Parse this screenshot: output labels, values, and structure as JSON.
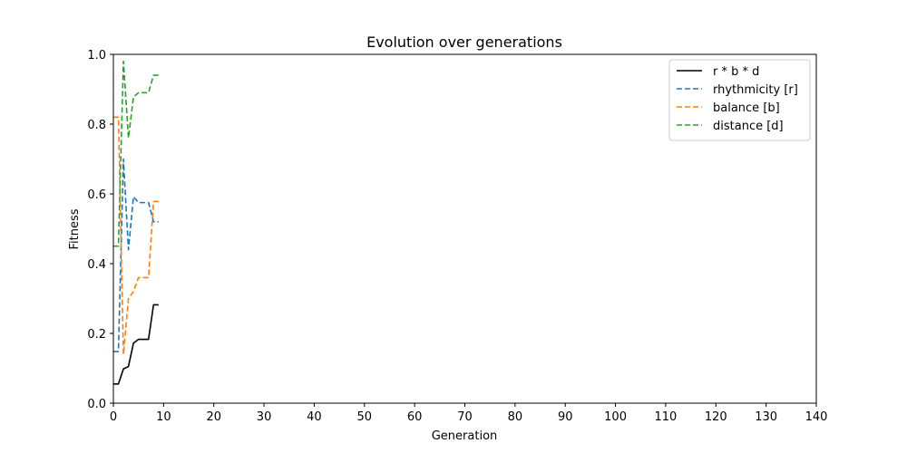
{
  "chart_data": {
    "type": "line",
    "title": "Evolution over generations",
    "xlabel": "Generation",
    "ylabel": "Fitness",
    "xlim": [
      0,
      140
    ],
    "ylim": [
      0,
      1.0
    ],
    "xticks": [
      "0",
      "10",
      "20",
      "30",
      "40",
      "50",
      "60",
      "70",
      "80",
      "90",
      "100",
      "110",
      "120",
      "130",
      "140"
    ],
    "yticks": [
      "0.0",
      "0.2",
      "0.4",
      "0.6",
      "0.8",
      "1.0"
    ],
    "grid": false,
    "legend_position": "top-right",
    "series": [
      {
        "name": "r * b * d",
        "color": "#000000",
        "dash": "solid",
        "x": [
          0,
          1,
          2,
          3,
          4,
          5,
          6,
          7,
          8,
          9
        ],
        "y": [
          0.055,
          0.055,
          0.098,
          0.105,
          0.172,
          0.183,
          0.183,
          0.183,
          0.282,
          0.282
        ]
      },
      {
        "name": "rhythmicity [r]",
        "color": "#1f77b4",
        "dash": "dashed",
        "x": [
          0,
          1,
          2,
          3,
          4,
          5,
          6,
          7,
          8,
          9
        ],
        "y": [
          0.148,
          0.148,
          0.7,
          0.44,
          0.592,
          0.575,
          0.575,
          0.575,
          0.52,
          0.52
        ]
      },
      {
        "name": "balance [b]",
        "color": "#ff7f0e",
        "dash": "dashed",
        "x": [
          0,
          1,
          2,
          3,
          4,
          5,
          6,
          7,
          8,
          9
        ],
        "y": [
          0.82,
          0.82,
          0.14,
          0.3,
          0.32,
          0.36,
          0.36,
          0.36,
          0.578,
          0.578
        ]
      },
      {
        "name": "distance [d]",
        "color": "#2ca02c",
        "dash": "dashed",
        "x": [
          0,
          1,
          2,
          3,
          4,
          5,
          6,
          7,
          8,
          9
        ],
        "y": [
          0.45,
          0.45,
          0.98,
          0.76,
          0.878,
          0.89,
          0.89,
          0.89,
          0.94,
          0.94
        ]
      }
    ]
  }
}
